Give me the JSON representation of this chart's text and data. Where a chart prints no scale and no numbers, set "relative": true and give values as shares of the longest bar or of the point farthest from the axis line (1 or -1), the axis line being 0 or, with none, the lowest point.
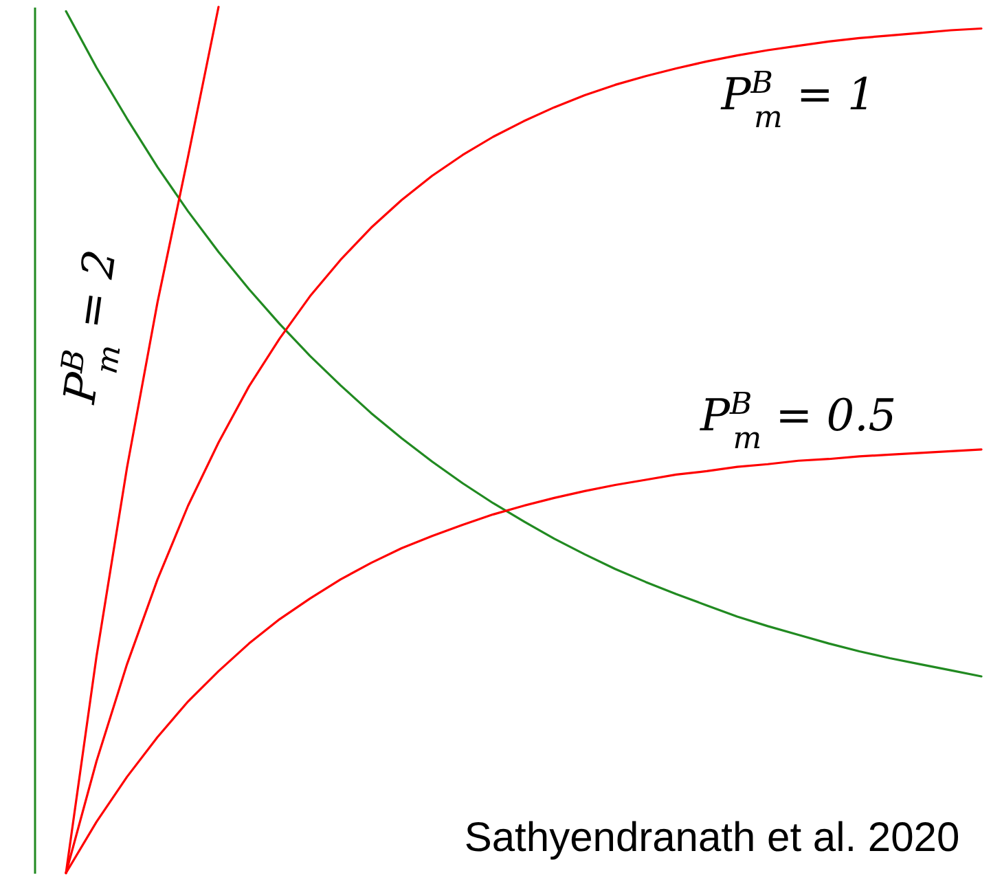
{
  "chart_data": {
    "type": "line",
    "relative": true,
    "categories": [
      null,
      null,
      null,
      null,
      null,
      null,
      null,
      null,
      null,
      null,
      null,
      null,
      null,
      null,
      null,
      null,
      null,
      null,
      null,
      null,
      null,
      null,
      null,
      null,
      null,
      null,
      null,
      null,
      null,
      null,
      null
    ],
    "series": [
      {
        "color": "#218a21",
        "values": [
          0.995,
          0.93,
          0.871,
          0.815,
          0.764,
          0.717,
          0.674,
          0.634,
          0.597,
          0.563,
          0.531,
          0.502,
          0.475,
          0.45,
          0.427,
          0.406,
          0.386,
          0.368,
          0.351,
          0.336,
          0.322,
          0.309,
          0.296,
          0.285,
          0.275,
          0.265,
          0.256,
          0.248,
          0.241,
          0.234,
          0.227
        ]
      },
      {
        "name": "P$^{B}$$_{m}$ = 1",
        "color": "#ff0000",
        "values": [
          0,
          0.129,
          0.241,
          0.339,
          0.424,
          0.497,
          0.562,
          0.617,
          0.666,
          0.708,
          0.745,
          0.777,
          0.805,
          0.829,
          0.85,
          0.868,
          0.884,
          0.898,
          0.91,
          0.92,
          0.929,
          0.937,
          0.944,
          0.95,
          0.955,
          0.96,
          0.964,
          0.967,
          0.97,
          0.973,
          0.975
        ]
      },
      {
        "name": "P$^{B}$$_{m}$ = 0.5",
        "color": "#ff0000",
        "values": [
          0,
          0.059,
          0.111,
          0.157,
          0.198,
          0.233,
          0.265,
          0.293,
          0.317,
          0.339,
          0.358,
          0.375,
          0.389,
          0.402,
          0.414,
          0.424,
          0.433,
          0.441,
          0.448,
          0.454,
          0.46,
          0.464,
          0.469,
          0.472,
          0.476,
          0.478,
          0.481,
          0.483,
          0.485,
          0.487,
          0.489
        ]
      },
      {
        "name": "P$^{B}$$_{m}$ = 2",
        "color": "#ff0000",
        "values": [
          0,
          0.25,
          0.468,
          0.659,
          0.827,
          1,
          null,
          null,
          null,
          null,
          null,
          null,
          null,
          null,
          null,
          null,
          null,
          null,
          null,
          null,
          null,
          null,
          null,
          null,
          null,
          null,
          null,
          null,
          null,
          null,
          null
        ]
      }
    ],
    "annotations": [
      "Sathyendranath et al. 2020"
    ]
  }
}
